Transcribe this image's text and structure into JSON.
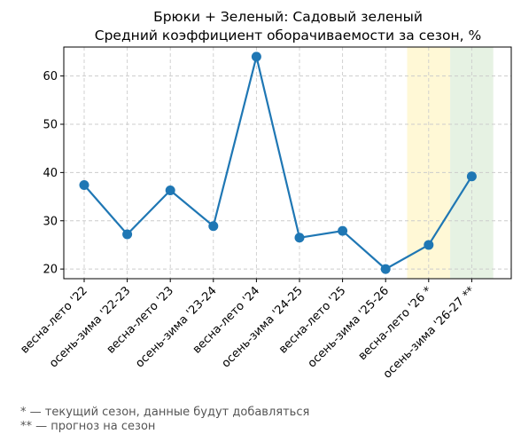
{
  "chart_data": {
    "type": "line",
    "title": "Брюки + Зеленый: Садовый зеленый",
    "subtitle": "Средний коэффициент оборачиваемости за сезон, %",
    "xlabel": "",
    "ylabel": "",
    "categories": [
      "весна-лето '22",
      "осень-зима '22-23",
      "весна-лето '23",
      "осень-зима '23-24",
      "весна-лето '24",
      "осень-зима '24-25",
      "весна-лето '25",
      "осень-зима '25-26",
      "весна-лето '26 *",
      "осень-зима '26-27 **"
    ],
    "series": [
      {
        "values": [
          37.4,
          27.2,
          36.3,
          28.9,
          64.0,
          26.5,
          27.9,
          20.0,
          25.0,
          39.2
        ],
        "color": "#1f77b4"
      }
    ],
    "ylim": [
      18,
      66
    ],
    "yticks": [
      20,
      30,
      40,
      50,
      60
    ],
    "grid": true,
    "highlights": [
      {
        "category_index": 8,
        "color": "#fff8d6",
        "meaning": "current"
      },
      {
        "category_index": 9,
        "color": "#e6f2e3",
        "meaning": "forecast"
      }
    ]
  },
  "footnotes": {
    "current": "* — текущий сезон, данные будут добавляться",
    "forecast": "** — прогноз на сезон"
  }
}
